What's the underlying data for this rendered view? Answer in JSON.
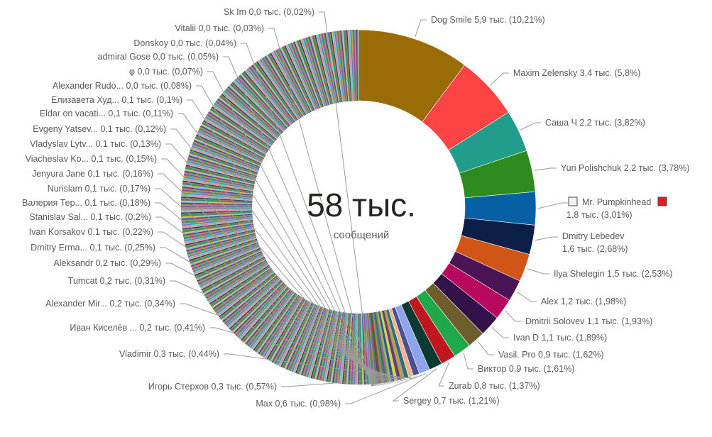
{
  "center": {
    "total": "58 тыс.",
    "subtitle": "сообщений"
  },
  "chart_data": {
    "type": "pie",
    "variant": "donut",
    "title": "",
    "unit": "тыс. сообщений",
    "total": 58,
    "series": [
      {
        "name": "Dog Smile",
        "value": "5,9",
        "pct": "10,21%",
        "color": "#9a6c08"
      },
      {
        "name": "Maxim Zelensky",
        "value": "3,4",
        "pct": "5,8%",
        "color": "#fd4445"
      },
      {
        "name": "Саша Ч",
        "value": "2,2",
        "pct": "3,82%",
        "color": "#229d8c"
      },
      {
        "name": "Yuri Polishchuk",
        "value": "2,2",
        "pct": "3,78%",
        "color": "#2e8b1d"
      },
      {
        "name": "Mr. Pumpkinhead",
        "value": "1,8",
        "pct": "3,01%",
        "color": "#075fa4",
        "label_style": "two-line-with-swatches"
      },
      {
        "name": "Dmitry Lebedev",
        "value": "1,6",
        "pct": "2,68%",
        "color": "#0b1f48",
        "label_style": "two-line"
      },
      {
        "name": "Ilya Shelegin",
        "value": "1,5",
        "pct": "2,53%",
        "color": "#d05516"
      },
      {
        "name": "Alex",
        "value": "1,2",
        "pct": "1,98%",
        "color": "#4a1456"
      },
      {
        "name": "Dmitrii Solovev",
        "value": "1,1",
        "pct": "1,93%",
        "color": "#b8085d"
      },
      {
        "name": "Ivan D",
        "value": "1,1",
        "pct": "1,89%",
        "color": "#33124a"
      },
      {
        "name": "Vasil. Pro",
        "value": "0,9",
        "pct": "1,62%",
        "color": "#705d2e"
      },
      {
        "name": "Виктор",
        "value": "0,9",
        "pct": "1,61%",
        "color": "#21a84b"
      },
      {
        "name": "Zurab",
        "value": "0,8",
        "pct": "1,37%",
        "color": "#c0161f"
      },
      {
        "name": "Sergey",
        "value": "0,7",
        "pct": "1,21%",
        "color": "#0b3a32"
      },
      {
        "name": "Max",
        "value": "0,6",
        "pct": "0,98%",
        "color": "#8ea4ea"
      },
      {
        "name": "Игорь Стерхов",
        "value": "0,3",
        "pct": "0,57%",
        "color": "#4a4f8f"
      },
      {
        "name": "Vladimir",
        "value": "0,3",
        "pct": "0,44%",
        "color": "#f2b38a"
      },
      {
        "name": "Иван Киселёв ...",
        "value": "0,2",
        "pct": "0,41%",
        "color": "#2f6e7a"
      },
      {
        "name": "Alexander Mir...",
        "value": "0,2",
        "pct": "0,34%",
        "color": "#b0a05a"
      },
      {
        "name": "Tumcat",
        "value": "0,2",
        "pct": "0,31%",
        "color": "#6a3b78"
      },
      {
        "name": "Aleksandr",
        "value": "0,2",
        "pct": "0,29%",
        "color": "#cdd84a"
      },
      {
        "name": "Dmitry Erma...",
        "value": "0,1",
        "pct": "0,25%",
        "color": "#3a4c9a"
      },
      {
        "name": "Ivan Korsakov",
        "value": "0,1",
        "pct": "0,22%",
        "color": "#7fc06b"
      },
      {
        "name": "Stanislav Sal...",
        "value": "0,1",
        "pct": "0,2%",
        "color": "#9b6d8a"
      },
      {
        "name": "Валерия Тер...",
        "value": "0,1",
        "pct": "0,18%",
        "color": "#4f6b3c"
      },
      {
        "name": "Nurislam",
        "value": "0,1",
        "pct": "0,17%",
        "color": "#2b8fb0"
      },
      {
        "name": "Jenyura Jane",
        "value": "0,1",
        "pct": "0,16%",
        "color": "#c77c40"
      },
      {
        "name": "Viacheslav Ko...",
        "value": "0,1",
        "pct": "0,15%",
        "color": "#5a5a5a"
      },
      {
        "name": "Vladyslav Lytv...",
        "value": "0,1",
        "pct": "0,13%",
        "color": "#8a3a3a"
      },
      {
        "name": "Evgeny Yatsev...",
        "value": "0,1",
        "pct": "0,12%",
        "color": "#3c8c5c"
      },
      {
        "name": "Eldar on vacati...",
        "value": "0,1",
        "pct": "0,11%",
        "color": "#6a6ab8"
      },
      {
        "name": "Елизавета Худ...",
        "value": "0,1",
        "pct": "0,1%",
        "color": "#b89a3a"
      },
      {
        "name": "Alexander Rudo...",
        "value": "0,0",
        "pct": "0,08%",
        "color": "#4a7a9a"
      },
      {
        "name": "φ",
        "value": "0,0",
        "pct": "0,07%",
        "color": "#9a5a7a"
      },
      {
        "name": "admiral Gose",
        "value": "0,0",
        "pct": "0,05%",
        "color": "#7a8a5a"
      },
      {
        "name": "Donskoy",
        "value": "0,0",
        "pct": "0,04%",
        "color": "#aa7a9a"
      },
      {
        "name": "Vitalii",
        "value": "0,0",
        "pct": "0,03%",
        "color": "#8a8aaa"
      },
      {
        "name": "Sk Im",
        "value": "0,0",
        "pct": "0,02%",
        "color": "#bbbbbb"
      }
    ],
    "other_participants_color_palette": [
      "#5a6fd0",
      "#d0a040",
      "#40a0a0",
      "#a040a0",
      "#60c060",
      "#c06060",
      "#404080",
      "#80c0e0",
      "#e0c060",
      "#707070",
      "#20a060",
      "#a08060",
      "#303050",
      "#c0c0c0",
      "#e080a0",
      "#60e0c0"
    ],
    "legend": "none (data labels with leader lines)"
  }
}
